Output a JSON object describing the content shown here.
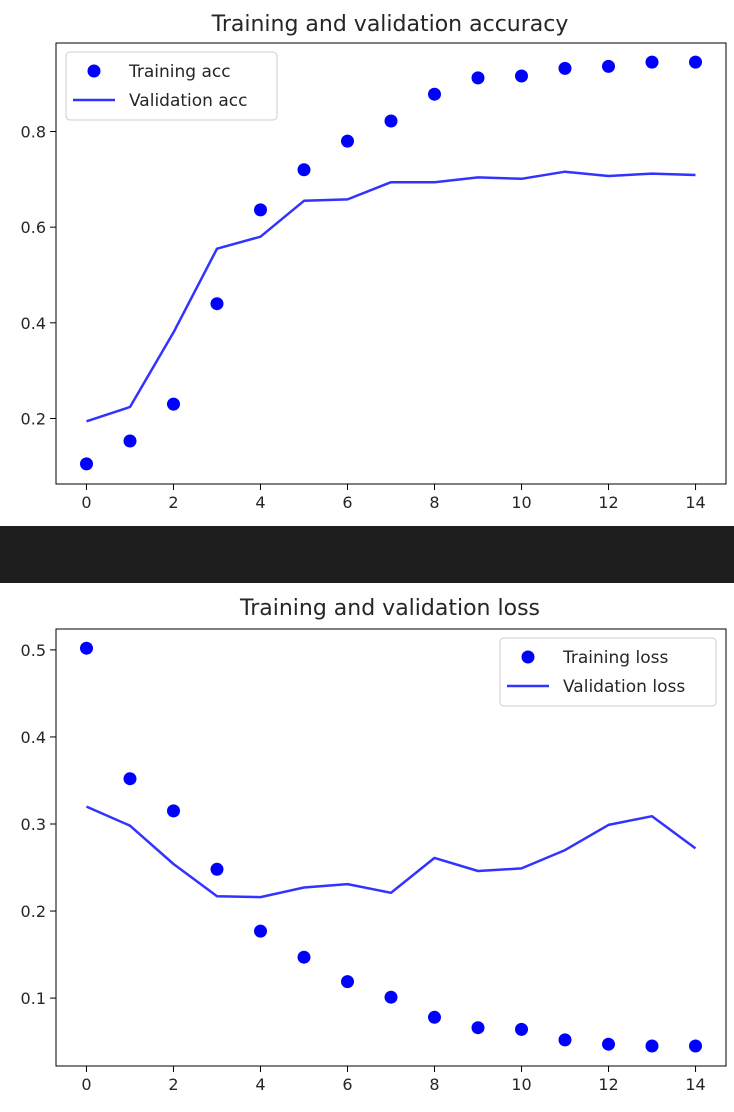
{
  "page": {
    "separator_color": "#1e1e1e"
  },
  "chart_data": [
    {
      "type": "line",
      "title": "Training and validation accuracy",
      "xlabel": "",
      "ylabel": "",
      "x": [
        0,
        1,
        2,
        3,
        4,
        5,
        6,
        7,
        8,
        9,
        10,
        11,
        12,
        13,
        14
      ],
      "xlim": [
        -0.7,
        14.7
      ],
      "ylim": [
        0.063,
        0.985
      ],
      "x_ticks": [
        0,
        2,
        4,
        6,
        8,
        10,
        12,
        14
      ],
      "x_tick_labels": [
        "0",
        "2",
        "4",
        "6",
        "8",
        "10",
        "12",
        "14"
      ],
      "y_ticks": [
        0.2,
        0.4,
        0.6,
        0.8
      ],
      "y_tick_labels": [
        "0.2",
        "0.4",
        "0.6",
        "0.8"
      ],
      "grid": false,
      "legend_position": "upper left",
      "series": [
        {
          "name": "Training acc",
          "style": "markers",
          "color": "#0000ff",
          "values": [
            0.105,
            0.153,
            0.23,
            0.44,
            0.636,
            0.72,
            0.78,
            0.822,
            0.878,
            0.912,
            0.916,
            0.932,
            0.936,
            0.945,
            0.945
          ]
        },
        {
          "name": "Validation acc",
          "style": "line",
          "color": "#3333ff",
          "values": [
            0.194,
            0.224,
            0.38,
            0.555,
            0.58,
            0.655,
            0.658,
            0.694,
            0.694,
            0.704,
            0.701,
            0.716,
            0.707,
            0.712,
            0.709
          ]
        }
      ]
    },
    {
      "type": "line",
      "title": "Training and validation loss",
      "xlabel": "",
      "ylabel": "",
      "x": [
        0,
        1,
        2,
        3,
        4,
        5,
        6,
        7,
        8,
        9,
        10,
        11,
        12,
        13,
        14
      ],
      "xlim": [
        -0.7,
        14.7
      ],
      "ylim": [
        0.022,
        0.524
      ],
      "x_ticks": [
        0,
        2,
        4,
        6,
        8,
        10,
        12,
        14
      ],
      "x_tick_labels": [
        "0",
        "2",
        "4",
        "6",
        "8",
        "10",
        "12",
        "14"
      ],
      "y_ticks": [
        0.1,
        0.2,
        0.3,
        0.4,
        0.5
      ],
      "y_tick_labels": [
        "0.1",
        "0.2",
        "0.3",
        "0.4",
        "0.5"
      ],
      "grid": false,
      "legend_position": "upper right",
      "series": [
        {
          "name": "Training loss",
          "style": "markers",
          "color": "#0000ff",
          "values": [
            0.502,
            0.352,
            0.315,
            0.248,
            0.177,
            0.147,
            0.119,
            0.101,
            0.078,
            0.066,
            0.064,
            0.052,
            0.047,
            0.045,
            0.045
          ]
        },
        {
          "name": "Validation loss",
          "style": "line",
          "color": "#3333ff",
          "values": [
            0.32,
            0.298,
            0.254,
            0.217,
            0.216,
            0.227,
            0.231,
            0.221,
            0.261,
            0.246,
            0.249,
            0.27,
            0.299,
            0.309,
            0.272
          ]
        }
      ]
    }
  ]
}
